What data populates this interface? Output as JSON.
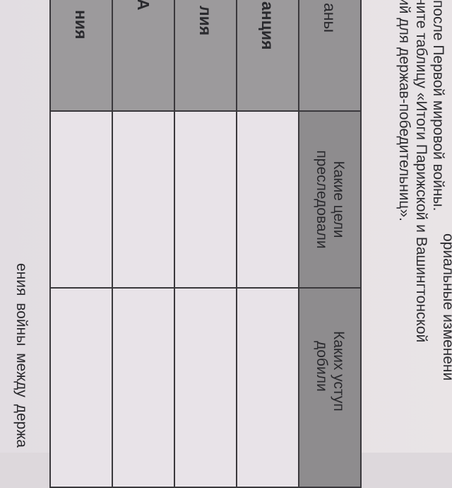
{
  "instructions": {
    "line0": "ориальные изменени",
    "line1": "после Первой мировой войны.",
    "line2": "ните таблицу «Итоги Парижской и Вашингтонской",
    "line3": "ий для держав-победительниц»."
  },
  "table": {
    "headers": [
      "аны",
      "Какие цели\nпреследовали",
      "Каких уступ\nдобили"
    ],
    "header_col2_lines": [
      "Какие цели",
      "преследовали"
    ],
    "header_col3_lines": [
      "Каких уступ",
      "добили"
    ],
    "rows": [
      {
        "country": "анция"
      },
      {
        "country": "лия"
      },
      {
        "country": "А"
      },
      {
        "country": "ния"
      }
    ]
  },
  "bottom_text": "ения войны между держа",
  "colors": {
    "header_fill": "#8e8c8e",
    "country_fill": "#9c9a9c",
    "cell_fill": "#e8e3e8",
    "border": "#3a383c"
  }
}
